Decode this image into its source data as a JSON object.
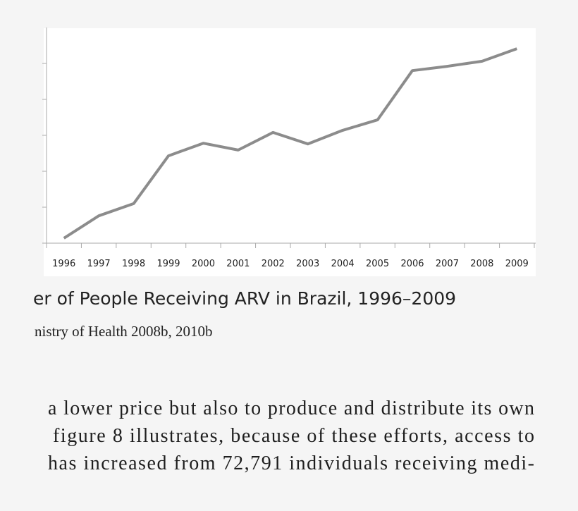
{
  "chart_data": {
    "type": "line",
    "categories": [
      "1996",
      "1997",
      "1998",
      "1999",
      "2000",
      "2001",
      "2002",
      "2003",
      "2004",
      "2005",
      "2006",
      "2007",
      "2008",
      "2009"
    ],
    "values": [
      0.14,
      0.76,
      1.1,
      2.43,
      2.78,
      2.59,
      3.08,
      2.76,
      3.14,
      3.43,
      4.8,
      4.92,
      5.06,
      5.41
    ],
    "color": "#8c8c8c",
    "ylim": [
      0,
      6
    ],
    "yticks": [
      0,
      1,
      2,
      3,
      4,
      5
    ]
  },
  "caption": "er of People Receiving ARV in Brazil, 1996–2009",
  "source": "nistry of Health 2008b, 2010b",
  "body": [
    "a lower price but also to produce and distribute its own",
    "figure 8 illustrates, because of these efforts, access to",
    "has increased from 72,791 individuals receiving medi-"
  ]
}
